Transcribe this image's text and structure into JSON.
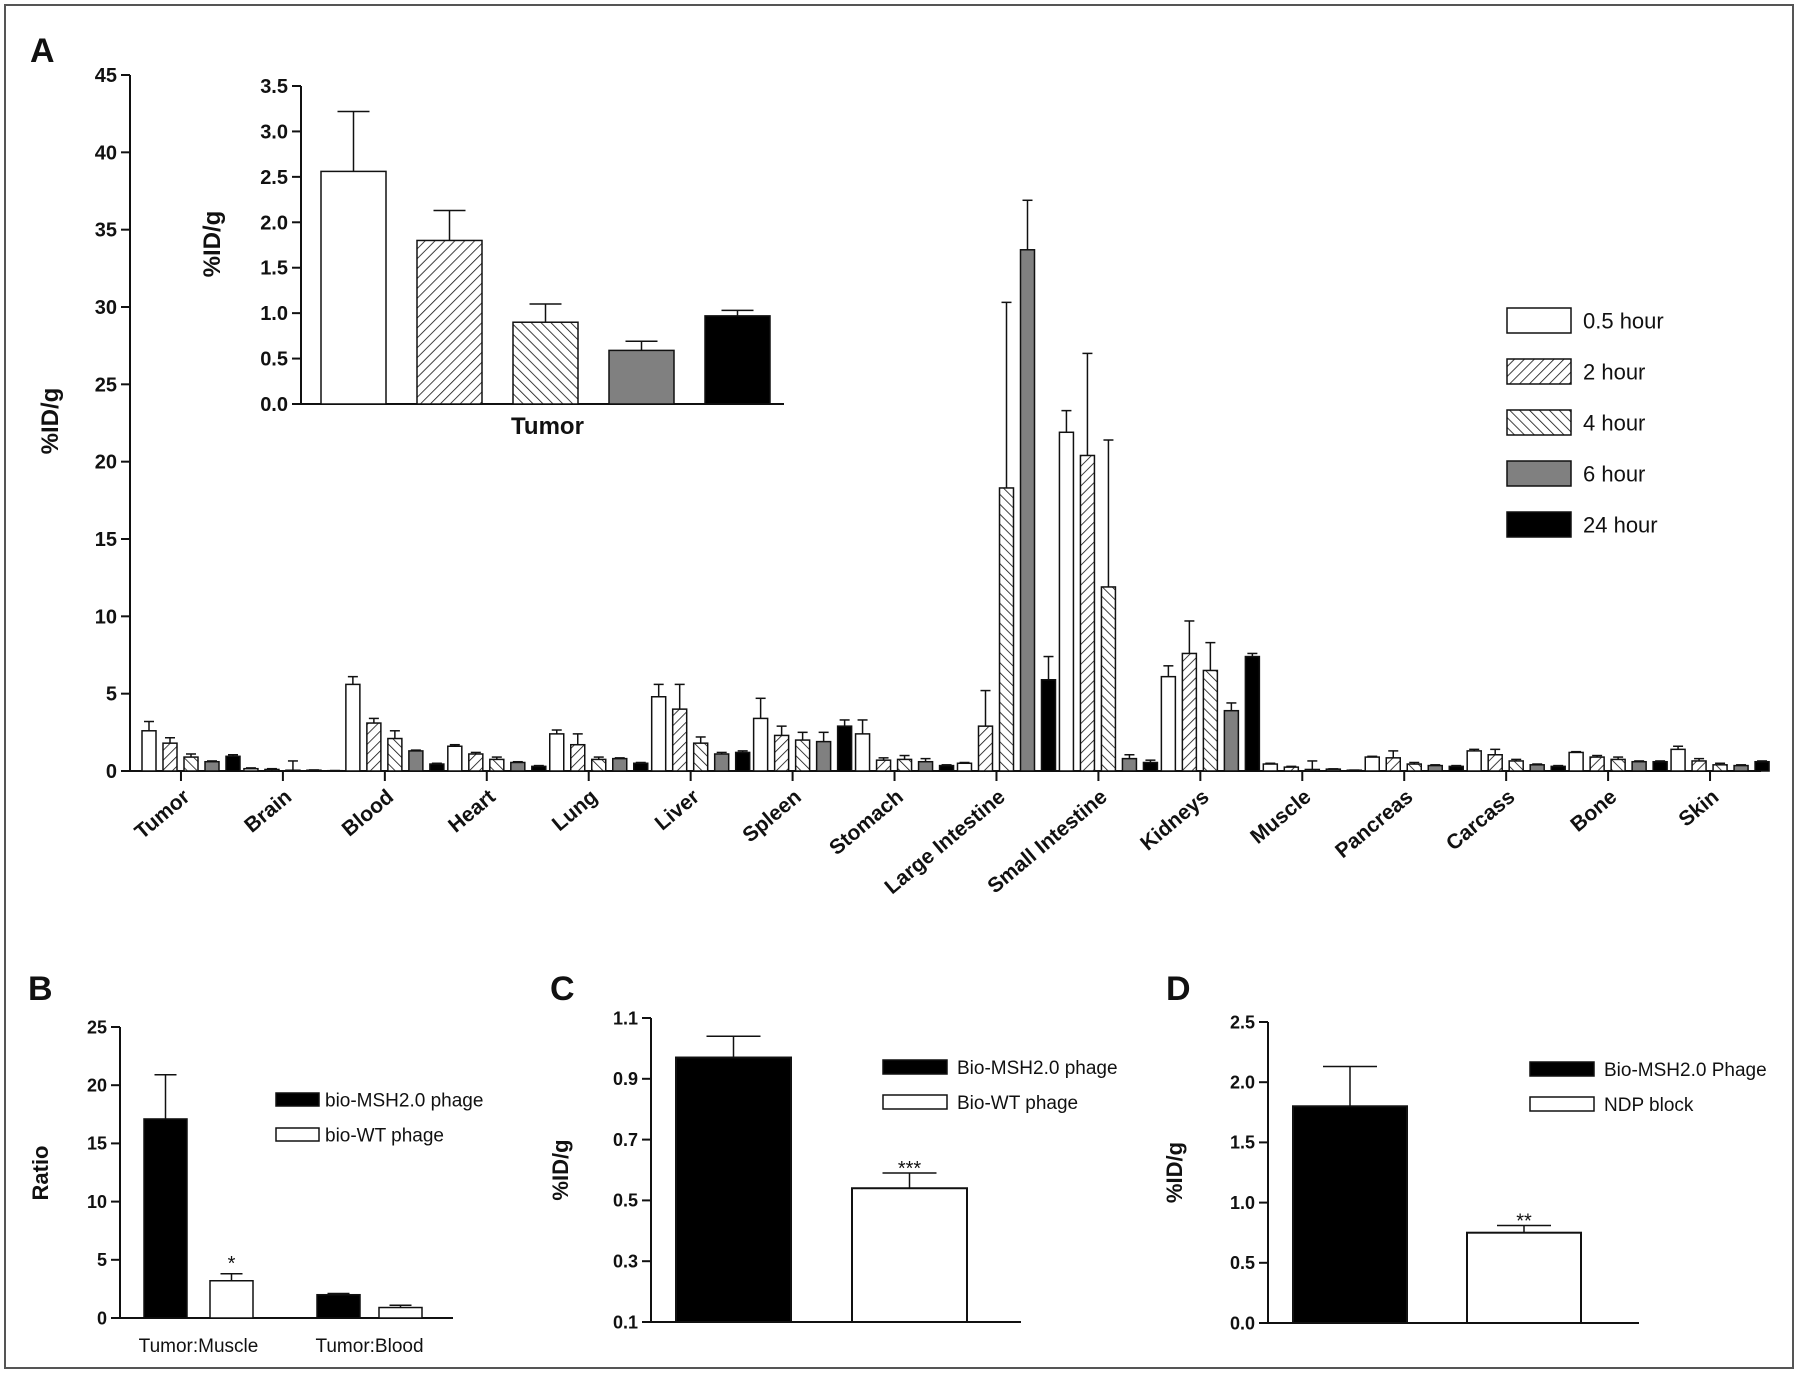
{
  "figure": {
    "panel_labels": {
      "A": "A",
      "B": "B",
      "C": "C",
      "D": "D"
    }
  },
  "patterns": {
    "0.5 hour": "white",
    "2 hour": "hatch-fwd",
    "4 hour": "hatch-back",
    "6 hour": "gray",
    "24 hour": "black"
  },
  "colors": {
    "black": "#000000",
    "gray": "#808080",
    "white": "#ffffff",
    "stroke": "#111111"
  },
  "chart_data": [
    {
      "panel": "A",
      "type": "bar",
      "title": "",
      "xlabel": "",
      "ylabel": "%ID/g",
      "ylim": [
        0,
        45
      ],
      "yticks": [
        0,
        5,
        10,
        15,
        20,
        25,
        30,
        35,
        40,
        45
      ],
      "legend": "right",
      "categories": [
        "Tumor",
        "Brain",
        "Blood",
        "Heart",
        "Lung",
        "Liver",
        "Spleen",
        "Stomach",
        "Large Intestine",
        "Small Intestine",
        "Kidneys",
        "Muscle",
        "Pancreas",
        "Carcass",
        "Bone",
        "Skin"
      ],
      "series": [
        {
          "name": "0.5 hour",
          "pattern": "white",
          "values": [
            2.6,
            0.15,
            5.6,
            1.6,
            2.4,
            4.8,
            3.4,
            2.4,
            0.5,
            21.9,
            6.1,
            0.45,
            0.9,
            1.3,
            1.2,
            1.4
          ],
          "errors": [
            0.6,
            0.05,
            0.5,
            0.1,
            0.25,
            0.8,
            1.3,
            0.9,
            0.05,
            1.4,
            0.7,
            0.05,
            0.05,
            0.1,
            0.05,
            0.2
          ]
        },
        {
          "name": "2 hour",
          "pattern": "hatch-fwd",
          "values": [
            1.8,
            0.1,
            3.1,
            1.1,
            1.7,
            4.0,
            2.3,
            0.7,
            2.9,
            20.4,
            7.6,
            0.25,
            0.85,
            1.05,
            0.9,
            0.65
          ],
          "errors": [
            0.35,
            0.05,
            0.3,
            0.1,
            0.7,
            1.6,
            0.6,
            0.15,
            2.3,
            6.6,
            2.1,
            0.05,
            0.45,
            0.35,
            0.1,
            0.15
          ]
        },
        {
          "name": "4 hour",
          "pattern": "hatch-back",
          "values": [
            0.9,
            0.05,
            2.1,
            0.75,
            0.75,
            1.8,
            2.0,
            0.75,
            18.3,
            11.9,
            6.5,
            0.1,
            0.45,
            0.65,
            0.75,
            0.4
          ],
          "errors": [
            0.2,
            0.6,
            0.5,
            0.15,
            0.15,
            0.4,
            0.5,
            0.25,
            12.0,
            9.5,
            1.8,
            0.55,
            0.1,
            0.1,
            0.15,
            0.1
          ]
        },
        {
          "name": "6 hour",
          "pattern": "gray",
          "values": [
            0.6,
            0.05,
            1.3,
            0.55,
            0.8,
            1.1,
            1.9,
            0.6,
            33.7,
            0.8,
            3.9,
            0.12,
            0.35,
            0.4,
            0.6,
            0.35
          ],
          "errors": [
            0.05,
            0.02,
            0.05,
            0.05,
            0.05,
            0.1,
            0.6,
            0.2,
            3.2,
            0.25,
            0.5,
            0.02,
            0.05,
            0.05,
            0.05,
            0.05
          ]
        },
        {
          "name": "24 hour",
          "pattern": "black",
          "values": [
            0.95,
            0.02,
            0.45,
            0.3,
            0.5,
            1.2,
            2.9,
            0.35,
            5.9,
            0.55,
            7.4,
            0.05,
            0.3,
            0.3,
            0.6,
            0.6
          ],
          "errors": [
            0.1,
            0.01,
            0.05,
            0.05,
            0.05,
            0.1,
            0.4,
            0.05,
            1.5,
            0.15,
            0.2,
            0.01,
            0.05,
            0.05,
            0.05,
            0.05
          ]
        }
      ]
    },
    {
      "panel": "A-inset",
      "type": "bar",
      "xlabel": "Tumor",
      "ylabel": "%ID/g",
      "ylim": [
        0,
        3.5
      ],
      "yticks": [
        "0.0",
        "0.5",
        "1.0",
        "1.5",
        "2.0",
        "2.5",
        "3.0",
        "3.5"
      ],
      "categories": [
        "0.5 hour",
        "2 hour",
        "4 hour",
        "6 hour",
        "24 hour"
      ],
      "values": [
        2.56,
        1.8,
        0.9,
        0.59,
        0.97
      ],
      "errors": [
        0.66,
        0.33,
        0.2,
        0.1,
        0.06
      ]
    },
    {
      "panel": "B",
      "type": "bar",
      "xlabel": "",
      "ylabel": "Ratio",
      "ylim": [
        0,
        25
      ],
      "yticks": [
        0,
        5,
        10,
        15,
        20,
        25
      ],
      "legend": "right",
      "categories": [
        "Tumor:Muscle",
        "Tumor:Blood"
      ],
      "series": [
        {
          "name": "bio-MSH2.0 phage",
          "pattern": "black",
          "values": [
            17.1,
            2.0
          ],
          "errors": [
            3.8,
            0.1
          ]
        },
        {
          "name": "bio-WT phage",
          "pattern": "white",
          "values": [
            3.2,
            0.9
          ],
          "errors": [
            0.6,
            0.2
          ]
        }
      ],
      "annotations": [
        {
          "series": 1,
          "category": 0,
          "text": "*"
        }
      ]
    },
    {
      "panel": "C",
      "type": "bar",
      "xlabel": "",
      "ylabel": "%ID/g",
      "ylim": [
        0.1,
        1.1
      ],
      "yticks": [
        "0.1",
        "0.3",
        "0.5",
        "0.7",
        "0.9",
        "1.1"
      ],
      "legend": "right",
      "categories": [
        "Bio-MSH2.0 phage",
        "Bio-WT phage"
      ],
      "values": [
        0.97,
        0.54
      ],
      "errors": [
        0.07,
        0.05
      ],
      "patterns": [
        "black",
        "white"
      ],
      "legend_entries": [
        "Bio-MSH2.0 phage",
        "Bio-WT phage"
      ],
      "annotations": [
        {
          "bar": 1,
          "text": "***"
        }
      ]
    },
    {
      "panel": "D",
      "type": "bar",
      "xlabel": "",
      "ylabel": "%ID/g",
      "ylim": [
        0,
        2.5
      ],
      "yticks": [
        "0.0",
        "0.5",
        "1.0",
        "1.5",
        "2.0",
        "2.5"
      ],
      "legend": "right",
      "categories": [
        "Bio-MSH2.0 Phage",
        "NDP block"
      ],
      "values": [
        1.8,
        0.75
      ],
      "errors": [
        0.33,
        0.06
      ],
      "patterns": [
        "black",
        "white"
      ],
      "legend_entries": [
        "Bio-MSH2.0 Phage",
        "NDP block"
      ],
      "annotations": [
        {
          "bar": 1,
          "text": "**"
        }
      ]
    }
  ]
}
